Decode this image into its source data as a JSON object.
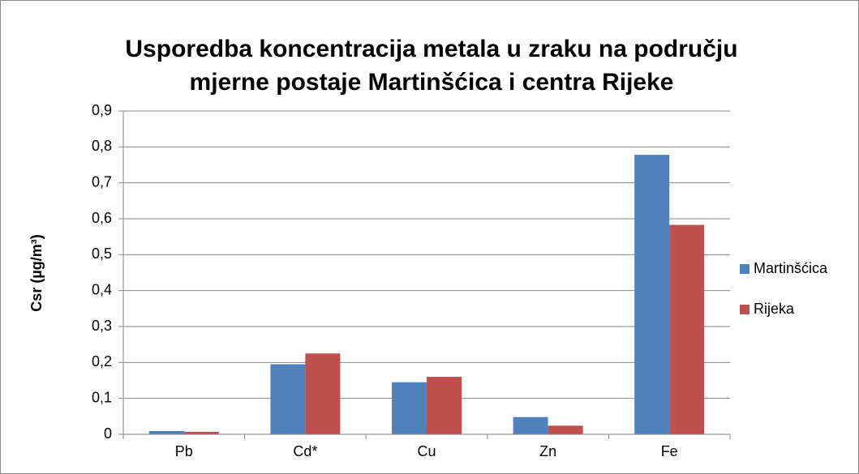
{
  "chart_data": {
    "type": "bar",
    "title": [
      "Usporedba koncentracija metala u zraku na području",
      "mjerne postaje Martinšćica i centra Rijeke"
    ],
    "y_label": "Csr (µg/m³)",
    "categories": [
      "Pb",
      "Cd*",
      "Cu",
      "Zn",
      "Fe"
    ],
    "series": [
      {
        "name": "Martinšćica",
        "color": "#4f81bd",
        "values": [
          0.009,
          0.195,
          0.145,
          0.048,
          0.778
        ]
      },
      {
        "name": "Rijeka",
        "color": "#c0504d",
        "values": [
          0.007,
          0.225,
          0.16,
          0.024,
          0.583
        ]
      }
    ],
    "ylim": [
      0,
      0.9
    ],
    "yticks": [
      0,
      {
        "value": 0.1,
        "label": "0,1"
      },
      {
        "value": 0.2,
        "label": "0,2"
      },
      {
        "value": 0.3,
        "label": "0,3"
      },
      {
        "value": 0.4,
        "label": "0,4"
      },
      {
        "value": 0.5,
        "label": "0,5"
      },
      {
        "value": 0.6,
        "label": "0,6"
      },
      {
        "value": 0.7,
        "label": "0,7"
      },
      {
        "value": 0.8,
        "label": "0,8"
      },
      {
        "value": 0.9,
        "label": "0,9"
      }
    ],
    "grid": true,
    "legend": "right"
  }
}
